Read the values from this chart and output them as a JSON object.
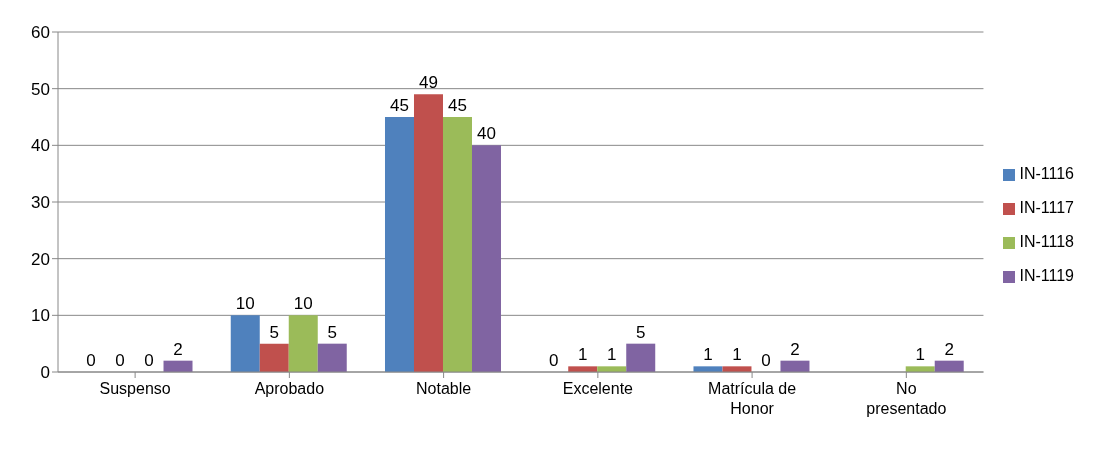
{
  "chart_data": {
    "type": "bar",
    "categories": [
      "Suspenso",
      "Aprobado",
      "Notable",
      "Excelente",
      "Matrícula de Honor",
      "No presentado"
    ],
    "series": [
      {
        "name": "IN-1116",
        "color": "#4f81bd",
        "values": [
          0,
          10,
          45,
          0,
          1,
          null
        ]
      },
      {
        "name": "IN-1117",
        "color": "#c0504d",
        "values": [
          0,
          5,
          49,
          1,
          1,
          null
        ]
      },
      {
        "name": "IN-1118",
        "color": "#9bbb59",
        "values": [
          0,
          10,
          45,
          1,
          0,
          1
        ]
      },
      {
        "name": "IN-1119",
        "color": "#8064a2",
        "values": [
          2,
          5,
          40,
          5,
          2,
          2
        ]
      }
    ],
    "ylim": [
      0,
      60
    ],
    "yticks": [
      0,
      10,
      20,
      30,
      40,
      50,
      60
    ],
    "grid": "y",
    "legend": "right",
    "data_labels": true
  }
}
